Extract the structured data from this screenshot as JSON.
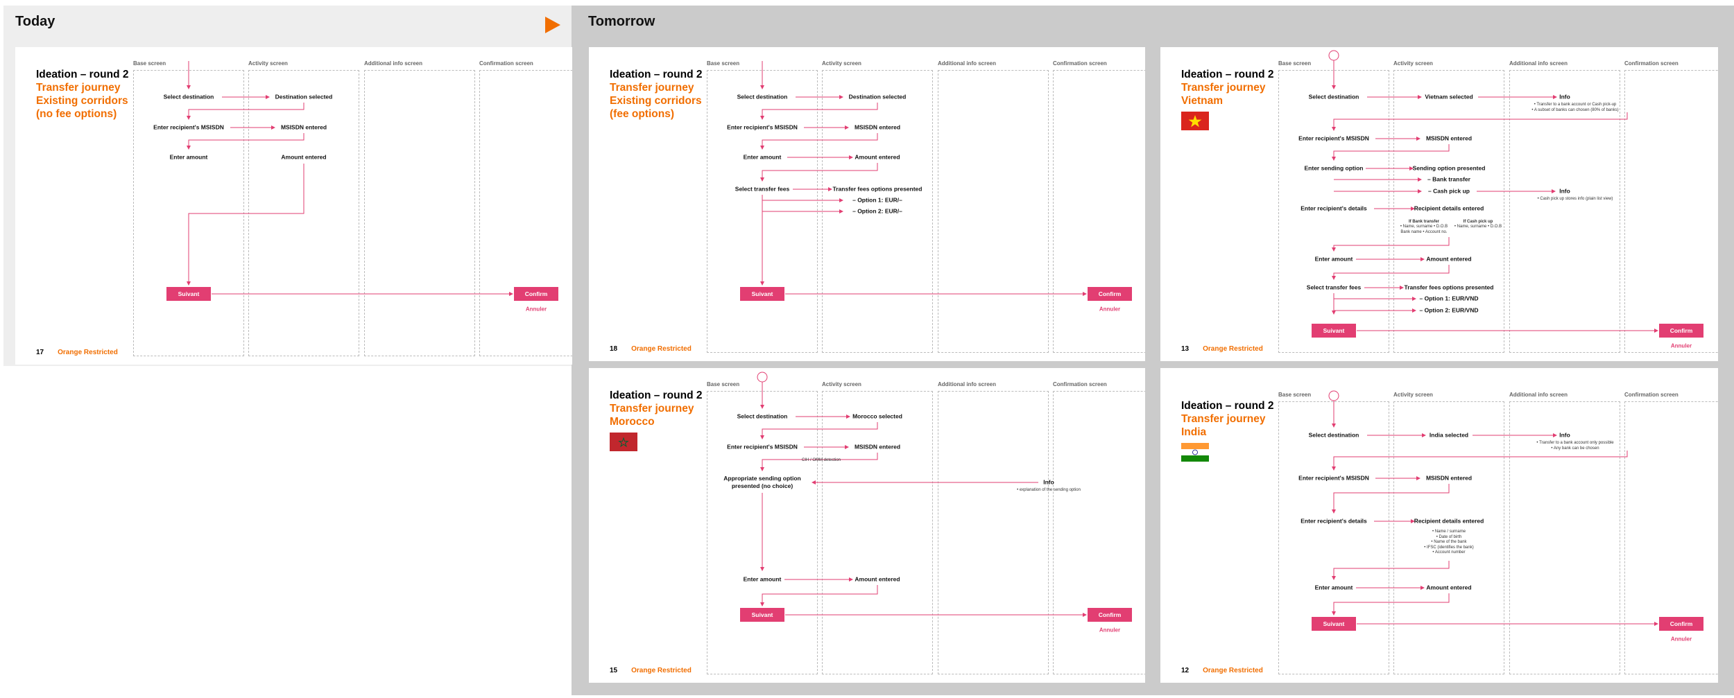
{
  "sections": {
    "today": "Today",
    "tomorrow": "Tomorrow"
  },
  "colors": {
    "accent": "#f16e00",
    "pink": "#e23e72"
  },
  "columns": [
    "Base screen",
    "Activity screen",
    "Additional info screen",
    "Confirmation screen"
  ],
  "slides": [
    {
      "id": "s17",
      "title": "Ideation – round 2",
      "subtitle": [
        "Transfer journey",
        "Existing corridors",
        "(no fee options)"
      ],
      "page_number": "17",
      "classification": "Orange Restricted",
      "steps": [
        {
          "key": "st",
          "col": 0,
          "text": "Select destination"
        },
        {
          "key": "ds",
          "col": 1,
          "text": "Destination selected"
        },
        {
          "key": "er",
          "col": 0,
          "text": "Enter recipient's MSISDN"
        },
        {
          "key": "me",
          "col": 1,
          "text": "MSISDN entered"
        },
        {
          "key": "ea",
          "col": 0,
          "text": "Enter amount"
        },
        {
          "key": "ae",
          "col": 1,
          "text": "Amount entered"
        }
      ],
      "next_button": "Suivant",
      "confirm_button": "Confirm",
      "cancel_link": "Annuler"
    },
    {
      "id": "s18",
      "title": "Ideation – round 2",
      "subtitle": [
        "Transfer journey",
        "Existing corridors",
        "(fee options)"
      ],
      "page_number": "18",
      "classification": "Orange Restricted",
      "steps": [
        {
          "key": "st",
          "text": "Select destination"
        },
        {
          "key": "ds",
          "text": "Destination selected"
        },
        {
          "key": "er",
          "text": "Enter recipient's MSISDN"
        },
        {
          "key": "me",
          "text": "MSISDN entered"
        },
        {
          "key": "ea",
          "text": "Enter amount"
        },
        {
          "key": "ae",
          "text": "Amount entered"
        },
        {
          "key": "sf",
          "text": "Select transfer fees"
        },
        {
          "key": "tf",
          "text": "Transfer fees options presented"
        },
        {
          "key": "o1",
          "text": "– Option 1: EUR/–"
        },
        {
          "key": "o2",
          "text": "– Option 2: EUR/–"
        }
      ],
      "next_button": "Suivant",
      "confirm_button": "Confirm",
      "cancel_link": "Annuler"
    },
    {
      "id": "s13",
      "title": "Ideation – round 2",
      "subtitle": [
        "Transfer journey",
        "Vietnam"
      ],
      "flag": "vietnam-flag",
      "page_number": "13",
      "classification": "Orange Restricted",
      "steps": [
        {
          "key": "st",
          "text": "Select destination"
        },
        {
          "key": "vs",
          "text": "Vietnam selected"
        },
        {
          "key": "i1",
          "text": "Info"
        },
        {
          "key": "er",
          "text": "Enter recipient's MSISDN"
        },
        {
          "key": "me",
          "text": "MSISDN entered"
        },
        {
          "key": "so",
          "text": "Enter sending option"
        },
        {
          "key": "sp",
          "text": "Sending option presented"
        },
        {
          "key": "bt",
          "text": "– Bank transfer"
        },
        {
          "key": "cp",
          "text": "– Cash pick up"
        },
        {
          "key": "i2",
          "text": "Info"
        },
        {
          "key": "rd",
          "text": "Enter recipient's details"
        },
        {
          "key": "re",
          "text": "Recipient details entered"
        },
        {
          "key": "ea",
          "text": "Enter amount"
        },
        {
          "key": "ae",
          "text": "Amount entered"
        },
        {
          "key": "sf",
          "text": "Select transfer fees"
        },
        {
          "key": "tf",
          "text": "Transfer fees options presented"
        },
        {
          "key": "o1",
          "text": "– Option 1: EUR/VND"
        },
        {
          "key": "o2",
          "text": "– Option 2: EUR/VND"
        }
      ],
      "notes": {
        "info1": "• Transfer to a bank account or Cash pick-up\n• A subset of banks can chosen (80% of banks)",
        "info2": "• Cash pick up stores info (plain list view)",
        "bank_head": "If Bank transfer",
        "bank_body": "• Name, surname • D.O.B\nBank name • Account no.",
        "cash_head": "If Cash pick up",
        "cash_body": "• Name, surname • D.O.B"
      },
      "next_button": "Suivant",
      "confirm_button": "Confirm",
      "cancel_link": "Annuler"
    },
    {
      "id": "s15",
      "title": "Ideation – round 2",
      "subtitle": [
        "Transfer journey",
        "Morocco"
      ],
      "flag": "morocco-flag",
      "page_number": "15",
      "classification": "Orange Restricted",
      "steps": [
        {
          "key": "st",
          "text": "Select destination"
        },
        {
          "key": "ms",
          "text": "Morocco selected"
        },
        {
          "key": "er",
          "text": "Enter recipient's MSISDN"
        },
        {
          "key": "me",
          "text": "MSISDN entered"
        },
        {
          "key": "as",
          "text": "Appropriate sending option\npresented (no choice)"
        },
        {
          "key": "in",
          "text": "Info"
        },
        {
          "key": "ea",
          "text": "Enter amount"
        },
        {
          "key": "ae",
          "text": "Amount entered"
        }
      ],
      "notes": {
        "cih": "CIH / OMM detection",
        "info": "• explanation of the sending option"
      },
      "next_button": "Suivant",
      "confirm_button": "Confirm",
      "cancel_link": "Annuler"
    },
    {
      "id": "s12",
      "title": "Ideation – round 2",
      "subtitle": [
        "Transfer journey",
        "India"
      ],
      "flag": "india-flag",
      "page_number": "12",
      "classification": "Orange Restricted",
      "steps": [
        {
          "key": "st",
          "text": "Select destination"
        },
        {
          "key": "is",
          "text": "India selected"
        },
        {
          "key": "in",
          "text": "Info"
        },
        {
          "key": "er",
          "text": "Enter recipient's MSISDN"
        },
        {
          "key": "me",
          "text": "MSISDN entered"
        },
        {
          "key": "rd",
          "text": "Enter recipient's details"
        },
        {
          "key": "re",
          "text": "Recipient details entered"
        },
        {
          "key": "ea",
          "text": "Enter amount"
        },
        {
          "key": "ae",
          "text": "Amount entered"
        }
      ],
      "notes": {
        "info": "• Transfer to a bank account only possible\n• Any bank can be chosen",
        "details": "• Name / surname\n• Date of birth\n• Name of the bank\n• IFSC (identifies the bank)\n• Account number"
      },
      "next_button": "Suivant",
      "confirm_button": "Confirm",
      "cancel_link": "Annuler"
    }
  ]
}
